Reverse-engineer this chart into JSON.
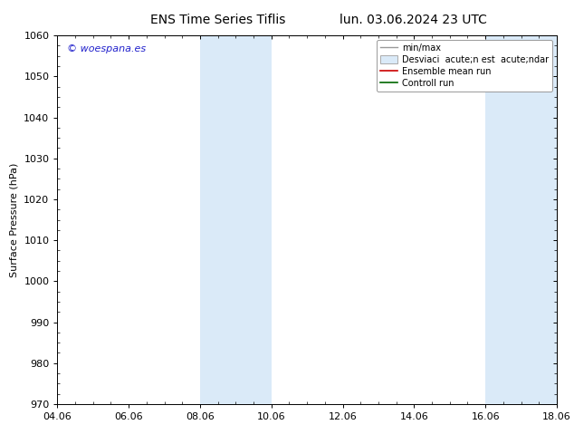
{
  "title_left": "ENS Time Series Tiflis",
  "title_right": "lun. 03.06.2024 23 UTC",
  "ylabel": "Surface Pressure (hPa)",
  "xlim_labels": [
    "04.06",
    "06.06",
    "08.06",
    "10.06",
    "12.06",
    "14.06",
    "16.06",
    "18.06"
  ],
  "xlim": [
    0,
    14
  ],
  "ylim": [
    970,
    1060
  ],
  "yticks": [
    970,
    980,
    990,
    1000,
    1010,
    1020,
    1030,
    1040,
    1050,
    1060
  ],
  "xtick_positions": [
    0,
    2,
    4,
    6,
    8,
    10,
    12,
    14
  ],
  "watermark": "© woespana.es",
  "watermark_color": "#2222cc",
  "shaded_bands": [
    {
      "x_start": 4,
      "x_end": 6,
      "color": "#daeaf8"
    },
    {
      "x_start": 12,
      "x_end": 14,
      "color": "#daeaf8"
    }
  ],
  "legend_entries": [
    {
      "label": "min/max",
      "type": "line",
      "color": "#999999",
      "lw": 1.0
    },
    {
      "label": "Desviaci  acute;n est  acute;ndar",
      "type": "box",
      "facecolor": "#daeaf8",
      "edgecolor": "#aaaaaa"
    },
    {
      "label": "Ensemble mean run",
      "type": "line",
      "color": "#cc0000",
      "lw": 1.2
    },
    {
      "label": "Controll run",
      "type": "line",
      "color": "#006600",
      "lw": 1.2
    }
  ],
  "bg_color": "#ffffff",
  "plot_bg_color": "#ffffff",
  "title_fontsize": 10,
  "tick_fontsize": 8,
  "ylabel_fontsize": 8,
  "watermark_fontsize": 8,
  "legend_fontsize": 7
}
